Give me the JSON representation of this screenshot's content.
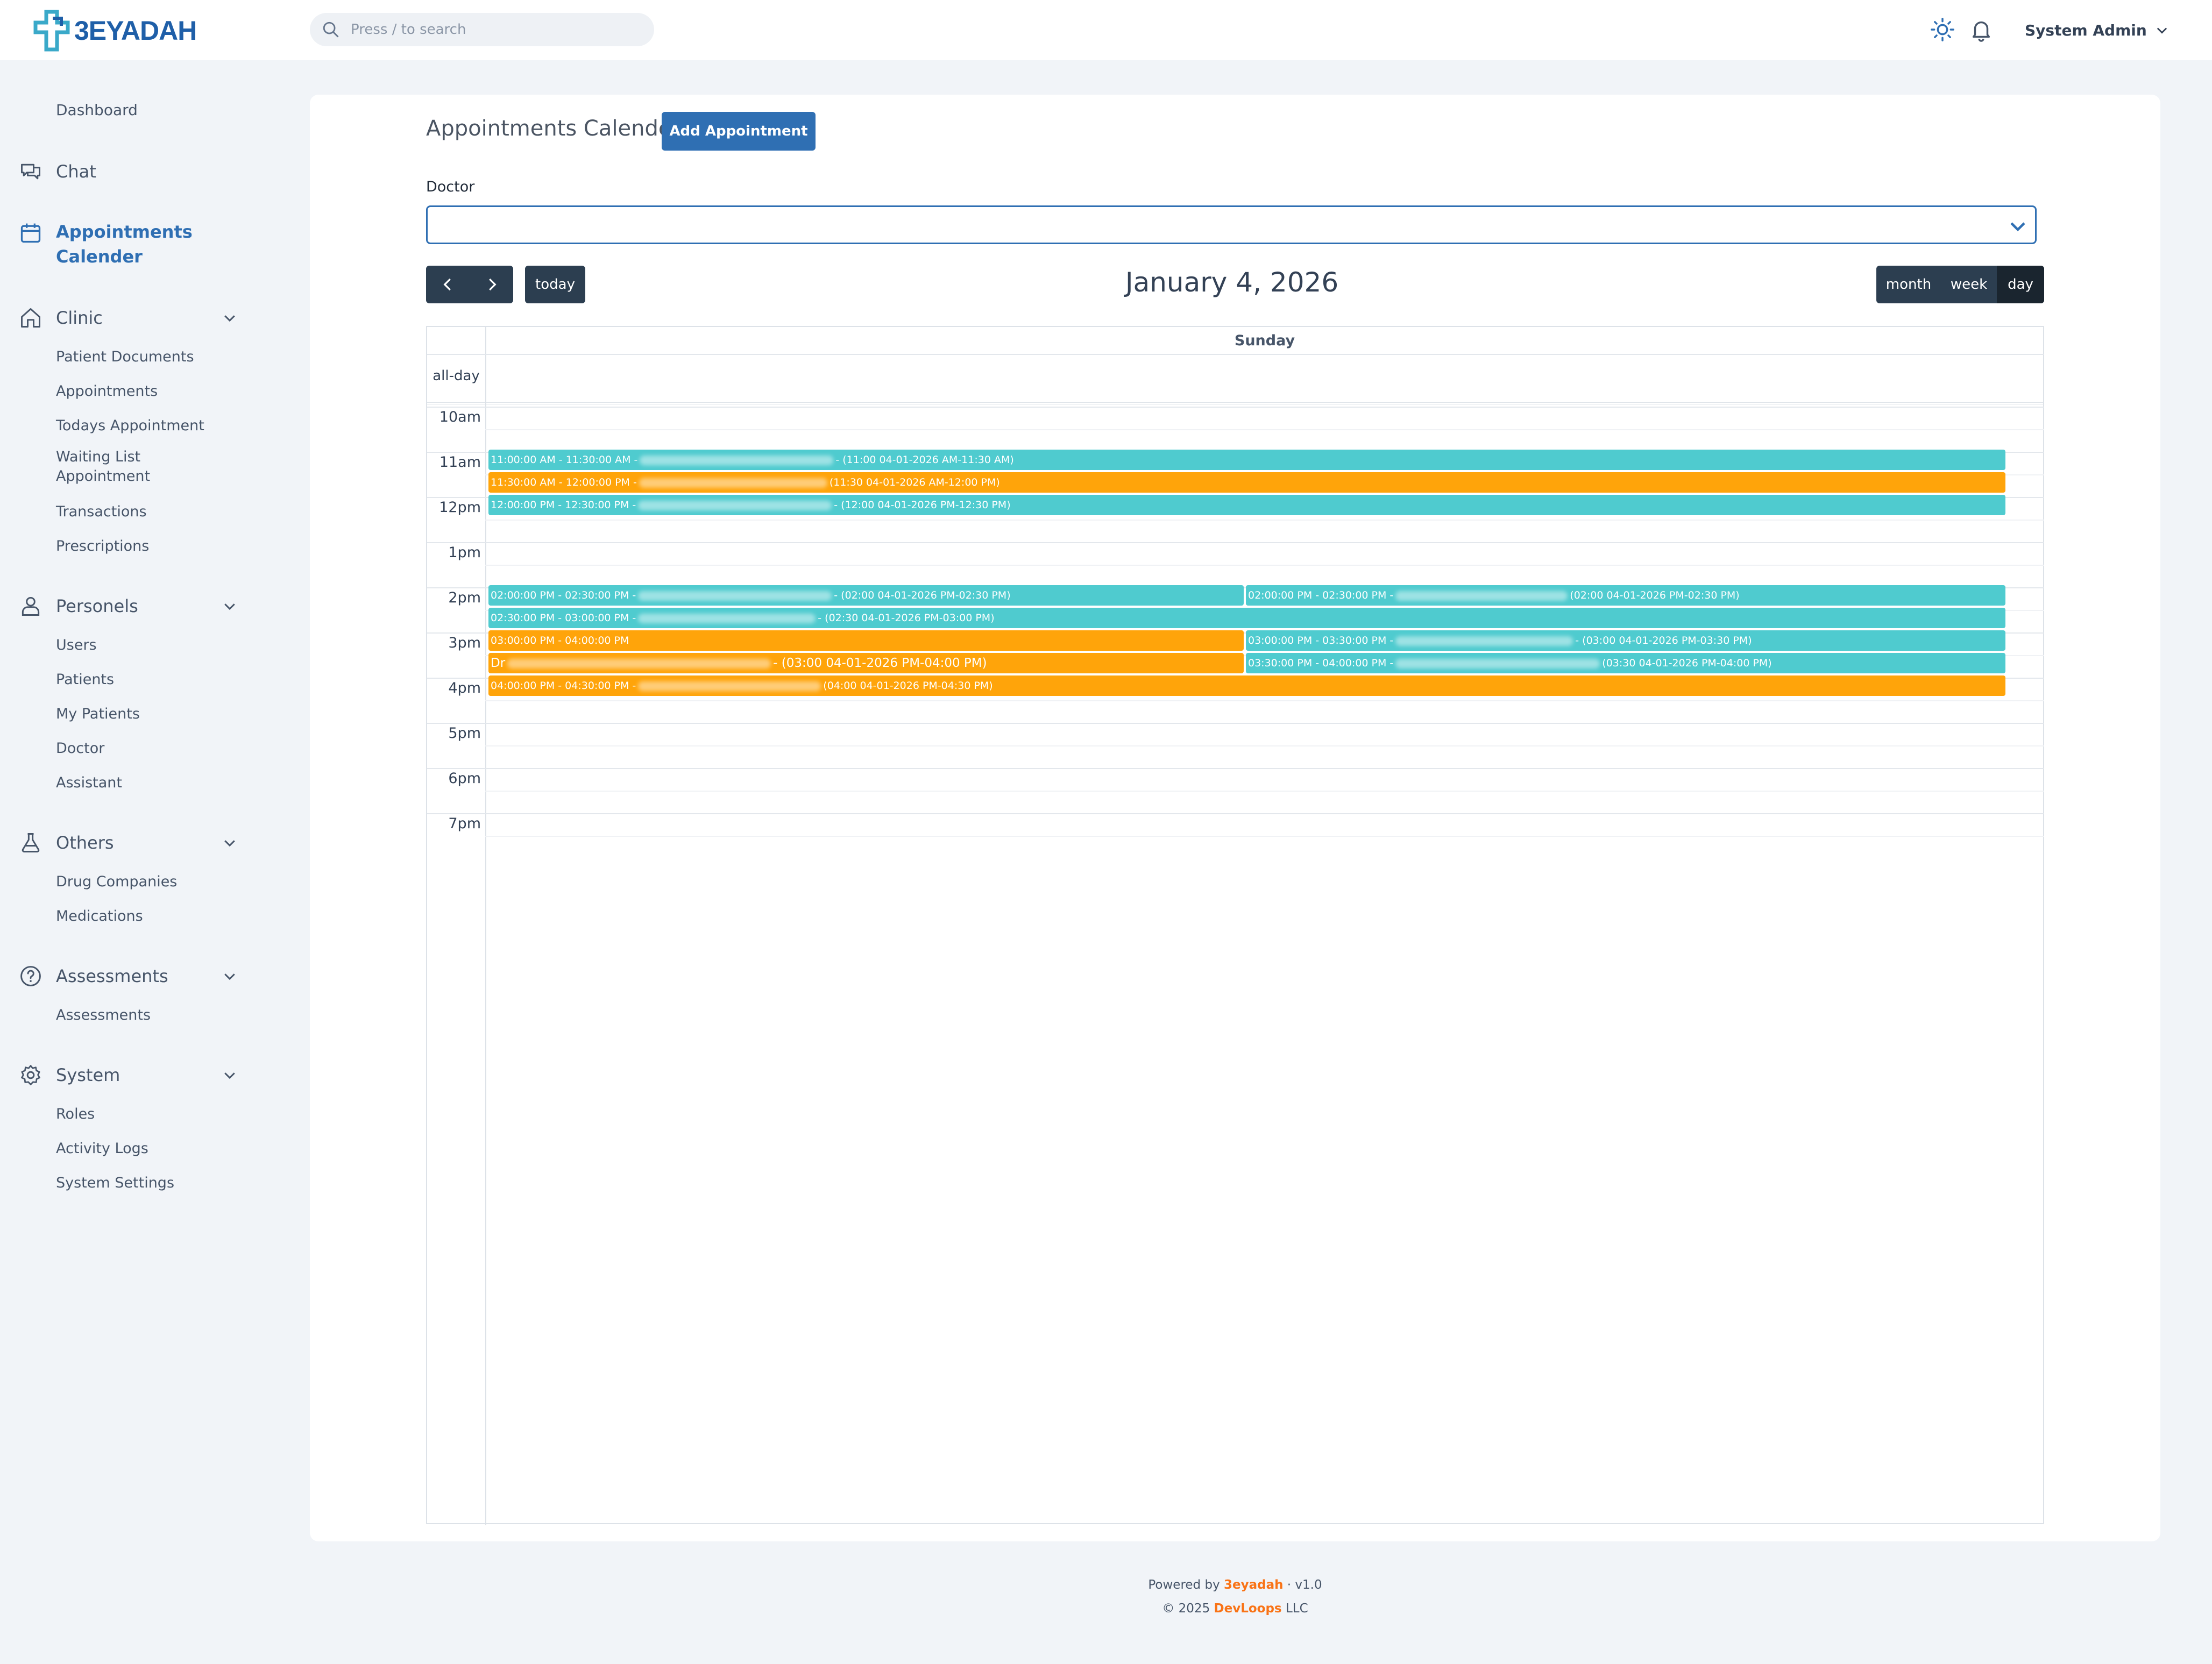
{
  "app": {
    "logo_text": "3EYADAH",
    "search_placeholder": "Press / to search",
    "user_name": "System Admin"
  },
  "sidebar": {
    "dashboard": "Dashboard",
    "chat": "Chat",
    "appointments_calender": "Appointments Calender",
    "clinic": {
      "label": "Clinic",
      "items": [
        "Patient Documents",
        "Appointments",
        "Todays Appointment",
        "Waiting List Appointment",
        "Transactions",
        "Prescriptions"
      ]
    },
    "personels": {
      "label": "Personels",
      "items": [
        "Users",
        "Patients",
        "My Patients",
        "Doctor",
        "Assistant"
      ]
    },
    "others": {
      "label": "Others",
      "items": [
        "Drug Companies",
        "Medications"
      ]
    },
    "assessments": {
      "label": "Assessments",
      "items": [
        "Assessments"
      ]
    },
    "system": {
      "label": "System",
      "items": [
        "Roles",
        "Activity Logs",
        "System Settings"
      ]
    }
  },
  "main": {
    "title": "Appointments Calender",
    "add_button": "Add Appointment",
    "doctor_label": "Doctor",
    "doctor_value": ""
  },
  "calendar": {
    "title": "January 4, 2026",
    "today_label": "today",
    "views": [
      "month",
      "week",
      "day"
    ],
    "active_view": "day",
    "day_header": "Sunday",
    "allday_label": "all-day",
    "hours": [
      "10am",
      "11am",
      "12pm",
      "1pm",
      "2pm",
      "3pm",
      "4pm",
      "5pm",
      "6pm",
      "7pm"
    ],
    "events": [
      {
        "prefix": "11:00:00 AM - 11:30:00 AM -",
        "suffix": "- (11:00 04-01-2026 AM-11:30 AM)",
        "color": "#4fcbcf"
      },
      {
        "prefix": "11:30:00 AM - 12:00:00 PM -",
        "suffix": "(11:30 04-01-2026 AM-12:00 PM)",
        "color": "#ffa40a"
      },
      {
        "prefix": "12:00:00 PM - 12:30:00 PM -",
        "suffix": "- (12:00 04-01-2026 PM-12:30 PM)",
        "color": "#4fcbcf"
      },
      {
        "prefix": "02:00:00 PM - 02:30:00 PM -",
        "suffix": "- (02:00 04-01-2026 PM-02:30 PM)",
        "color": "#4fcbcf"
      },
      {
        "prefix": "02:00:00 PM - 02:30:00 PM -",
        "suffix": "(02:00 04-01-2026 PM-02:30 PM)",
        "color": "#4fcbcf"
      },
      {
        "prefix": "02:30:00 PM - 03:00:00 PM -",
        "suffix": "- (02:30 04-01-2026 PM-03:00 PM)",
        "color": "#4fcbcf"
      },
      {
        "prefix": "03:00:00 PM - 04:00:00 PM",
        "suffix": "",
        "color": "#ffa40a"
      },
      {
        "prefix": "Dr",
        "suffix": "- (03:00 04-01-2026 PM-04:00 PM)",
        "color": "#ffa40a"
      },
      {
        "prefix": "03:00:00 PM - 03:30:00 PM -",
        "suffix": "- (03:00 04-01-2026 PM-03:30 PM)",
        "color": "#4fcbcf"
      },
      {
        "prefix": "03:30:00 PM - 04:00:00 PM -",
        "suffix": "(03:30 04-01-2026 PM-04:00 PM)",
        "color": "#4fcbcf"
      },
      {
        "prefix": "04:00:00 PM - 04:30:00 PM -",
        "suffix": "(04:00 04-01-2026 PM-04:30 PM)",
        "color": "#ffa40a"
      }
    ]
  },
  "footer": {
    "powered_by": "Powered by",
    "brand": "3eyadah",
    "version": "·  v1.0",
    "copyright": "© 2025",
    "company": "DevLoops",
    "company_suffix": "LLC"
  },
  "colors": {
    "accent": "#2f6fb3",
    "teal_event": "#4fcbcf",
    "orange_event": "#ffa40a",
    "dark_button": "#2c3e50"
  }
}
